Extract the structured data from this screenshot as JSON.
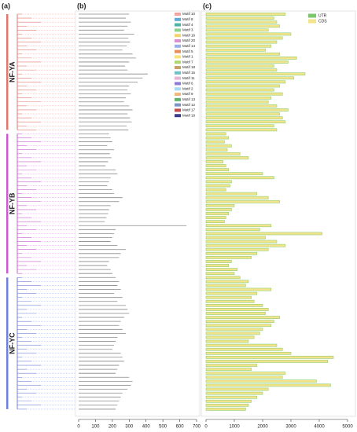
{
  "panels": {
    "a": "(a)",
    "b": "(b)",
    "c": "(c)"
  },
  "clades": [
    {
      "name": "NF-YA",
      "color": "#e0766e",
      "protein_lengths": [
        300,
        280,
        310,
        290,
        270,
        330,
        295,
        305,
        285,
        260,
        320,
        340,
        300,
        275,
        290,
        410,
        380,
        350,
        300,
        290,
        310,
        280,
        270,
        300,
        320,
        290,
        305,
        315,
        285,
        295
      ],
      "gene_lengths": [
        2800,
        2400,
        2500,
        2600,
        2200,
        3000,
        2700,
        2500,
        2300,
        2100,
        2600,
        3200,
        2900,
        2400,
        2500,
        3500,
        3100,
        2800,
        2600,
        2400,
        2700,
        2300,
        2200,
        2500,
        2900,
        2600,
        2700,
        2800,
        2400,
        2500
      ]
    },
    {
      "name": "NF-YB",
      "color": "#c85ccf",
      "protein_lengths": [
        180,
        190,
        200,
        170,
        210,
        185,
        195,
        175,
        160,
        220,
        230,
        190,
        180,
        170,
        200,
        210,
        260,
        240,
        190,
        180,
        175,
        165,
        155,
        640,
        220,
        210,
        200,
        190,
        230,
        280,
        250,
        240,
        180,
        170,
        190,
        200
      ],
      "gene_lengths": [
        700,
        800,
        650,
        900,
        750,
        1200,
        1500,
        600,
        700,
        800,
        2000,
        2400,
        900,
        850,
        700,
        1800,
        2200,
        2600,
        1000,
        900,
        800,
        700,
        650,
        2300,
        1900,
        4100,
        2100,
        2500,
        2800,
        2200,
        1800,
        1600,
        900,
        800,
        1100,
        1000
      ]
    },
    {
      "name": "NF-YC",
      "color": "#6f80d8",
      "protein_lengths": [
        220,
        240,
        230,
        250,
        210,
        260,
        230,
        280,
        290,
        300,
        270,
        250,
        240,
        260,
        280,
        230,
        220,
        210,
        200,
        250,
        260,
        270,
        240,
        230,
        220,
        300,
        320,
        310,
        290,
        260,
        250,
        240,
        230,
        220
      ],
      "gene_lengths": [
        1200,
        1500,
        1400,
        2300,
        1800,
        1600,
        1700,
        2000,
        2200,
        2100,
        2600,
        2400,
        2300,
        2000,
        1900,
        1700,
        1500,
        2500,
        2700,
        3000,
        4500,
        4300,
        1800,
        1600,
        2800,
        2700,
        3900,
        4400,
        2200,
        2000,
        1800,
        1600,
        1500,
        1400
      ]
    }
  ],
  "motifs": [
    {
      "name": "Motif 10",
      "color": "#f4a3a3"
    },
    {
      "name": "Motif 8",
      "color": "#5fa8d8"
    },
    {
      "name": "Motif 4",
      "color": "#4fb3a6"
    },
    {
      "name": "Motif 3",
      "color": "#8fd18a"
    },
    {
      "name": "Motif 16",
      "color": "#f3d36b"
    },
    {
      "name": "Motif 20",
      "color": "#d98fd0"
    },
    {
      "name": "Motif 14",
      "color": "#9ab0e8"
    },
    {
      "name": "Motif 5",
      "color": "#e88d5a"
    },
    {
      "name": "Motif 1",
      "color": "#f6e27a"
    },
    {
      "name": "Motif 7",
      "color": "#b0d66f"
    },
    {
      "name": "Motif 18",
      "color": "#c7a06b"
    },
    {
      "name": "Motif 15",
      "color": "#6cc1c9"
    },
    {
      "name": "Motif 11",
      "color": "#e5b5d6"
    },
    {
      "name": "Motif 6",
      "color": "#8d7fd6"
    },
    {
      "name": "Motif 2",
      "color": "#a6dcef"
    },
    {
      "name": "Motif 9",
      "color": "#f1b77d"
    },
    {
      "name": "Motif 13",
      "color": "#5db16b"
    },
    {
      "name": "Motif 12",
      "color": "#7d94c9"
    },
    {
      "name": "Motif 17",
      "color": "#c24b4b"
    },
    {
      "name": "Motif 19",
      "color": "#3d3d8f"
    }
  ],
  "protein_axis": {
    "xlim": [
      0,
      700
    ],
    "xticks": [
      0,
      100,
      200,
      300,
      400,
      500,
      600,
      700
    ]
  },
  "gene_axis": {
    "xlim": [
      0,
      5000
    ],
    "xticks": [
      0,
      1000,
      2000,
      3000,
      4000,
      5000
    ]
  },
  "gene_legend": [
    {
      "name": "UTR",
      "color": "#7bc86c"
    },
    {
      "name": "CDS",
      "color": "#f3e38a"
    }
  ]
}
